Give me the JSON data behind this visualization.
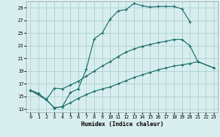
{
  "xlabel": "Humidex (Indice chaleur)",
  "xlim": [
    -0.5,
    23.5
  ],
  "ylim": [
    12.5,
    30.0
  ],
  "xticks": [
    0,
    1,
    2,
    3,
    4,
    5,
    6,
    7,
    8,
    9,
    10,
    11,
    12,
    13,
    14,
    15,
    16,
    17,
    18,
    19,
    20,
    21,
    22,
    23
  ],
  "yticks": [
    13,
    15,
    17,
    19,
    21,
    23,
    25,
    27,
    29
  ],
  "background_color": "#d8eeee",
  "grid_color": "#aacccc",
  "line_color": "#1a6b6b",
  "line1_x": [
    0,
    1,
    2,
    3,
    4,
    5,
    6,
    7,
    8,
    9,
    10,
    11,
    12,
    13,
    14,
    15,
    16,
    17,
    18,
    19,
    20
  ],
  "line1_y": [
    16.0,
    15.5,
    14.5,
    13.2,
    13.4,
    15.6,
    16.2,
    19.3,
    24.1,
    25.0,
    27.2,
    28.5,
    28.7,
    29.7,
    29.3,
    29.1,
    29.2,
    29.2,
    29.2,
    28.8,
    26.8
  ],
  "line2_x": [
    0,
    2,
    3,
    4,
    5,
    6,
    7,
    8,
    9,
    10,
    11,
    12,
    13,
    14,
    15,
    16,
    17,
    18,
    19,
    20,
    21,
    23
  ],
  "line2_y": [
    16.0,
    14.5,
    16.3,
    16.2,
    16.8,
    17.4,
    18.2,
    19.0,
    19.8,
    20.5,
    21.3,
    22.0,
    22.5,
    22.9,
    23.2,
    23.5,
    23.7,
    24.0,
    24.0,
    23.0,
    20.5,
    19.5
  ],
  "line3_x": [
    0,
    2,
    3,
    4,
    5,
    6,
    7,
    8,
    9,
    10,
    11,
    12,
    13,
    14,
    15,
    16,
    17,
    18,
    19,
    20,
    21,
    23
  ],
  "line3_y": [
    16.0,
    14.5,
    13.2,
    13.4,
    14.0,
    14.7,
    15.3,
    15.8,
    16.2,
    16.5,
    17.0,
    17.5,
    18.0,
    18.4,
    18.8,
    19.2,
    19.5,
    19.8,
    20.0,
    20.2,
    20.5,
    19.5
  ]
}
